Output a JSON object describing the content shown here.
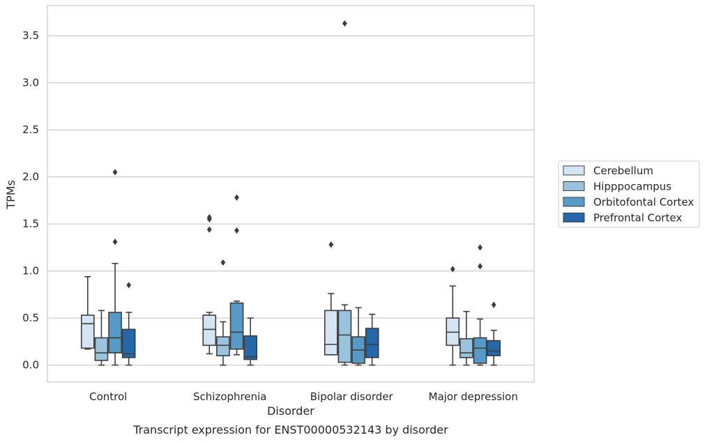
{
  "chart_data": {
    "type": "box",
    "title": "",
    "caption": "Transcript expression for ENST00000532143 by disorder",
    "xlabel": "Disorder",
    "ylabel": "TPMs",
    "ylim": [
      -0.18,
      3.82
    ],
    "yticks": [
      "0.0",
      "0.5",
      "1.0",
      "1.5",
      "2.0",
      "2.5",
      "3.0",
      "3.5"
    ],
    "ytick_values": [
      0,
      0.5,
      1.0,
      1.5,
      2.0,
      2.5,
      3.0,
      3.5
    ],
    "grid": true,
    "legend_position": "right",
    "categories": [
      "Control",
      "Schizophrenia",
      "Bipolar disorder",
      "Major depression"
    ],
    "series": [
      {
        "name": "Cerebellum",
        "color": "#d4e4f2",
        "boxes": [
          {
            "whislo": 0.17,
            "q1": 0.18,
            "med": 0.44,
            "q3": 0.53,
            "whishi": 0.94,
            "fliers": []
          },
          {
            "whislo": 0.12,
            "q1": 0.21,
            "med": 0.38,
            "q3": 0.53,
            "whishi": 0.56,
            "fliers": [
              1.57,
              1.55,
              1.44
            ]
          },
          {
            "whislo": 0.11,
            "q1": 0.11,
            "med": 0.22,
            "q3": 0.58,
            "whishi": 0.76,
            "fliers": [
              1.28
            ]
          },
          {
            "whislo": 0.0,
            "q1": 0.21,
            "med": 0.35,
            "q3": 0.5,
            "whishi": 0.84,
            "fliers": [
              1.02
            ]
          }
        ]
      },
      {
        "name": "Hipppocampus",
        "color": "#9ac3de",
        "boxes": [
          {
            "whislo": 0.0,
            "q1": 0.05,
            "med": 0.13,
            "q3": 0.29,
            "whishi": 0.58,
            "fliers": []
          },
          {
            "whislo": 0.0,
            "q1": 0.1,
            "med": 0.21,
            "q3": 0.3,
            "whishi": 0.46,
            "fliers": [
              1.09
            ]
          },
          {
            "whislo": 0.0,
            "q1": 0.03,
            "med": 0.32,
            "q3": 0.58,
            "whishi": 0.64,
            "fliers": [
              3.63
            ]
          },
          {
            "whislo": 0.0,
            "q1": 0.08,
            "med": 0.13,
            "q3": 0.28,
            "whishi": 0.57,
            "fliers": []
          }
        ]
      },
      {
        "name": "Orbitofontal Cortex",
        "color": "#5799c7",
        "boxes": [
          {
            "whislo": 0.0,
            "q1": 0.13,
            "med": 0.29,
            "q3": 0.56,
            "whishi": 1.08,
            "fliers": [
              2.05,
              1.31
            ]
          },
          {
            "whislo": 0.11,
            "q1": 0.17,
            "med": 0.35,
            "q3": 0.66,
            "whishi": 0.68,
            "fliers": [
              1.78,
              1.43
            ]
          },
          {
            "whislo": 0.0,
            "q1": 0.02,
            "med": 0.16,
            "q3": 0.3,
            "whishi": 0.61,
            "fliers": []
          },
          {
            "whislo": 0.0,
            "q1": 0.02,
            "med": 0.18,
            "q3": 0.29,
            "whishi": 0.49,
            "fliers": [
              1.25,
              1.05
            ]
          }
        ]
      },
      {
        "name": "Prefrontal Cortex",
        "color": "#2568a9",
        "boxes": [
          {
            "whislo": 0.0,
            "q1": 0.08,
            "med": 0.12,
            "q3": 0.38,
            "whishi": 0.56,
            "fliers": [
              0.85
            ]
          },
          {
            "whislo": 0.0,
            "q1": 0.06,
            "med": 0.09,
            "q3": 0.31,
            "whishi": 0.5,
            "fliers": []
          },
          {
            "whislo": 0.0,
            "q1": 0.08,
            "med": 0.22,
            "q3": 0.39,
            "whishi": 0.54,
            "fliers": []
          },
          {
            "whislo": 0.0,
            "q1": 0.1,
            "med": 0.15,
            "q3": 0.26,
            "whishi": 0.37,
            "fliers": [
              0.64
            ]
          }
        ]
      }
    ]
  }
}
